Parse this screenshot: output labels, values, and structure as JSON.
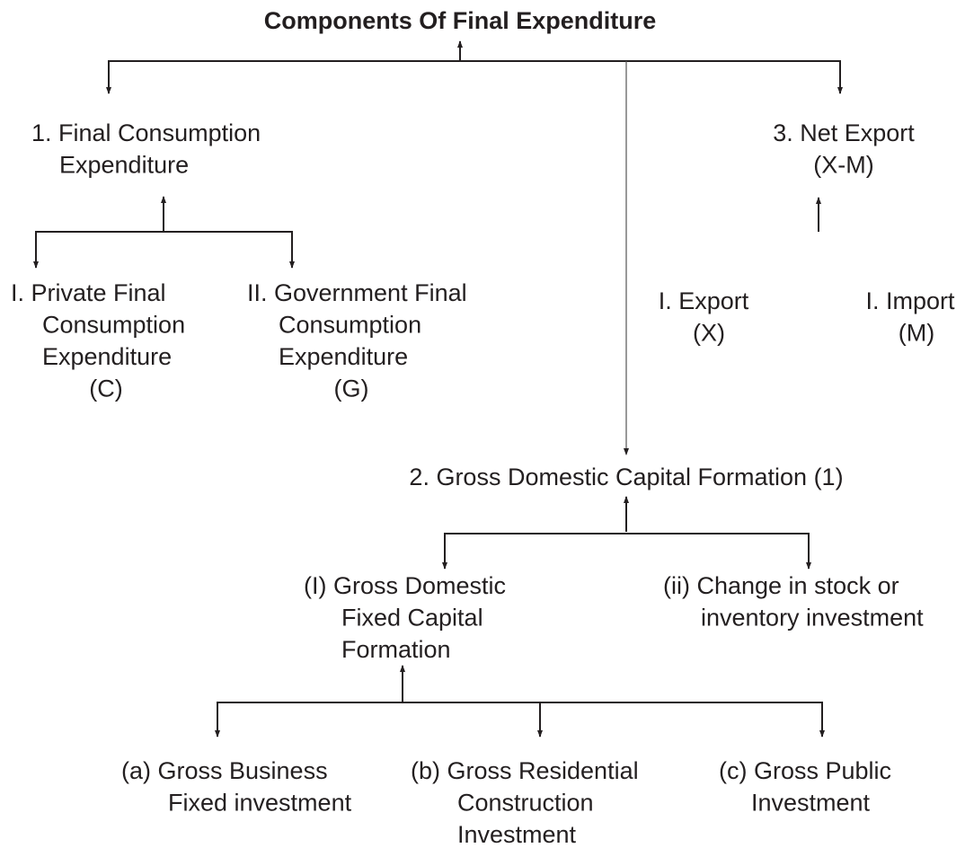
{
  "title": "Components Of Final Expenditure",
  "nodes": [
    {
      "lines": [
        "1. Final Consumption",
        "Expenditure"
      ]
    },
    {
      "lines": [
        "I. Private Final",
        "Consumption",
        "Expenditure",
        "(C)"
      ]
    },
    {
      "lines": [
        "II. Government Final",
        "Consumption",
        "Expenditure",
        "(G)"
      ]
    },
    {
      "lines": [
        "3. Net Export",
        "(X-M)"
      ]
    },
    {
      "lines": [
        "I. Export",
        "(X)"
      ]
    },
    {
      "lines": [
        "I. Import",
        "(M)"
      ]
    },
    {
      "lines": [
        "2. Gross Domestic Capital Formation (1)"
      ]
    },
    {
      "lines": [
        "(I) Gross Domestic",
        "Fixed Capital",
        "Formation"
      ]
    },
    {
      "lines": [
        "(ii) Change in stock or",
        "inventory investment"
      ]
    },
    {
      "lines": [
        "(a) Gross Business",
        "Fixed investment"
      ]
    },
    {
      "lines": [
        "(b) Gross Residential",
        "Construction",
        "Investment"
      ]
    },
    {
      "lines": [
        "(c) Gross Public",
        "Investment"
      ]
    }
  ]
}
